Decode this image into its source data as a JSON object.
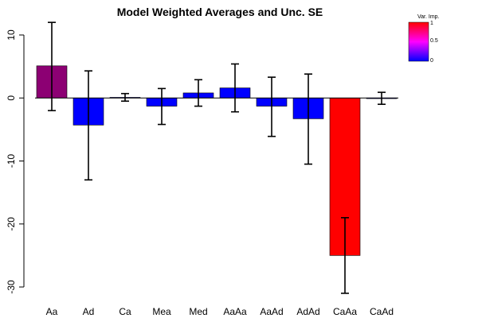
{
  "chart_data": {
    "type": "bar",
    "title": "Model Weighted Averages and Unc. SE",
    "xlabel": "",
    "ylabel": "",
    "categories": [
      "Aa",
      "Ad",
      "Ca",
      "Mea",
      "Med",
      "AaAa",
      "AaAd",
      "AdAd",
      "CaAa",
      "CaAd"
    ],
    "values": [
      5.1,
      -4.3,
      0.1,
      -1.3,
      0.8,
      1.6,
      -1.3,
      -3.3,
      -25.0,
      -0.1
    ],
    "err_low": [
      -2.0,
      -13.0,
      -0.5,
      -4.2,
      -1.3,
      -2.2,
      -6.1,
      -10.5,
      -31.0,
      -1.0
    ],
    "err_high": [
      12.0,
      4.3,
      0.7,
      1.5,
      2.9,
      5.4,
      3.3,
      3.8,
      -19.0,
      0.9
    ],
    "importance": [
      0.55,
      0.0,
      0.0,
      0.0,
      0.0,
      0.0,
      0.0,
      0.0,
      1.0,
      0.0
    ],
    "ylim": [
      -30,
      10
    ],
    "yticks": [
      -30,
      -20,
      -10,
      0,
      10
    ],
    "grid": false,
    "colors": {
      "low": "#0000ff",
      "high": "#ff0000"
    },
    "legend": {
      "title": "Var. Imp.",
      "position": "top-right",
      "ticks": [
        "1",
        "0.5",
        "0"
      ]
    }
  }
}
